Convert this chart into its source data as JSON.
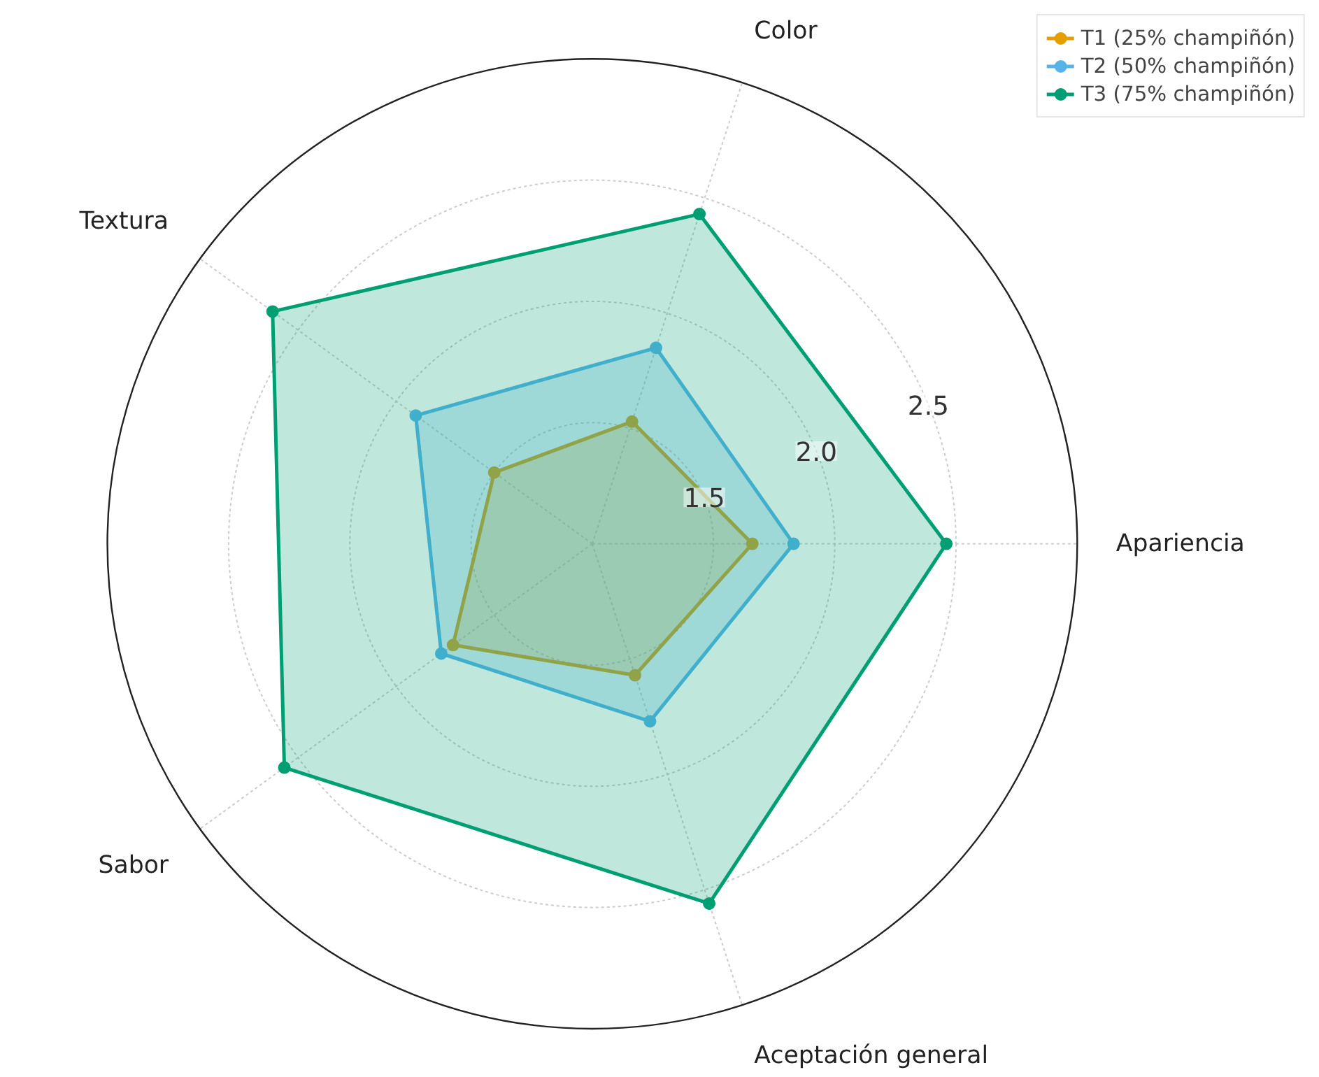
{
  "chart_data": {
    "type": "radar",
    "categories": [
      "Color",
      "Apariencia",
      "Aceptación general",
      "Sabor",
      "Textura"
    ],
    "series": [
      {
        "name": "T1 (25% champiñón)",
        "color": "#e69f00",
        "values": [
          1.53,
          1.66,
          1.57,
          1.71,
          1.5
        ]
      },
      {
        "name": "T2 (50% champiñón)",
        "color": "#56b4e9",
        "values": [
          1.85,
          1.83,
          1.77,
          1.77,
          1.9
        ]
      },
      {
        "name": "T3 (75% champiñón)",
        "color": "#009e73",
        "values": [
          2.43,
          2.46,
          2.56,
          2.57,
          2.63
        ]
      }
    ],
    "ylim": [
      1.0,
      3.0
    ],
    "yticks": [
      {
        "value": 1.5,
        "label": "1.5"
      },
      {
        "value": 2,
        "label": "2.0"
      },
      {
        "value": 2.5,
        "label": "2.5"
      }
    ],
    "grid": true,
    "legend": "top right",
    "marker": "circle",
    "line_style": "solid"
  }
}
